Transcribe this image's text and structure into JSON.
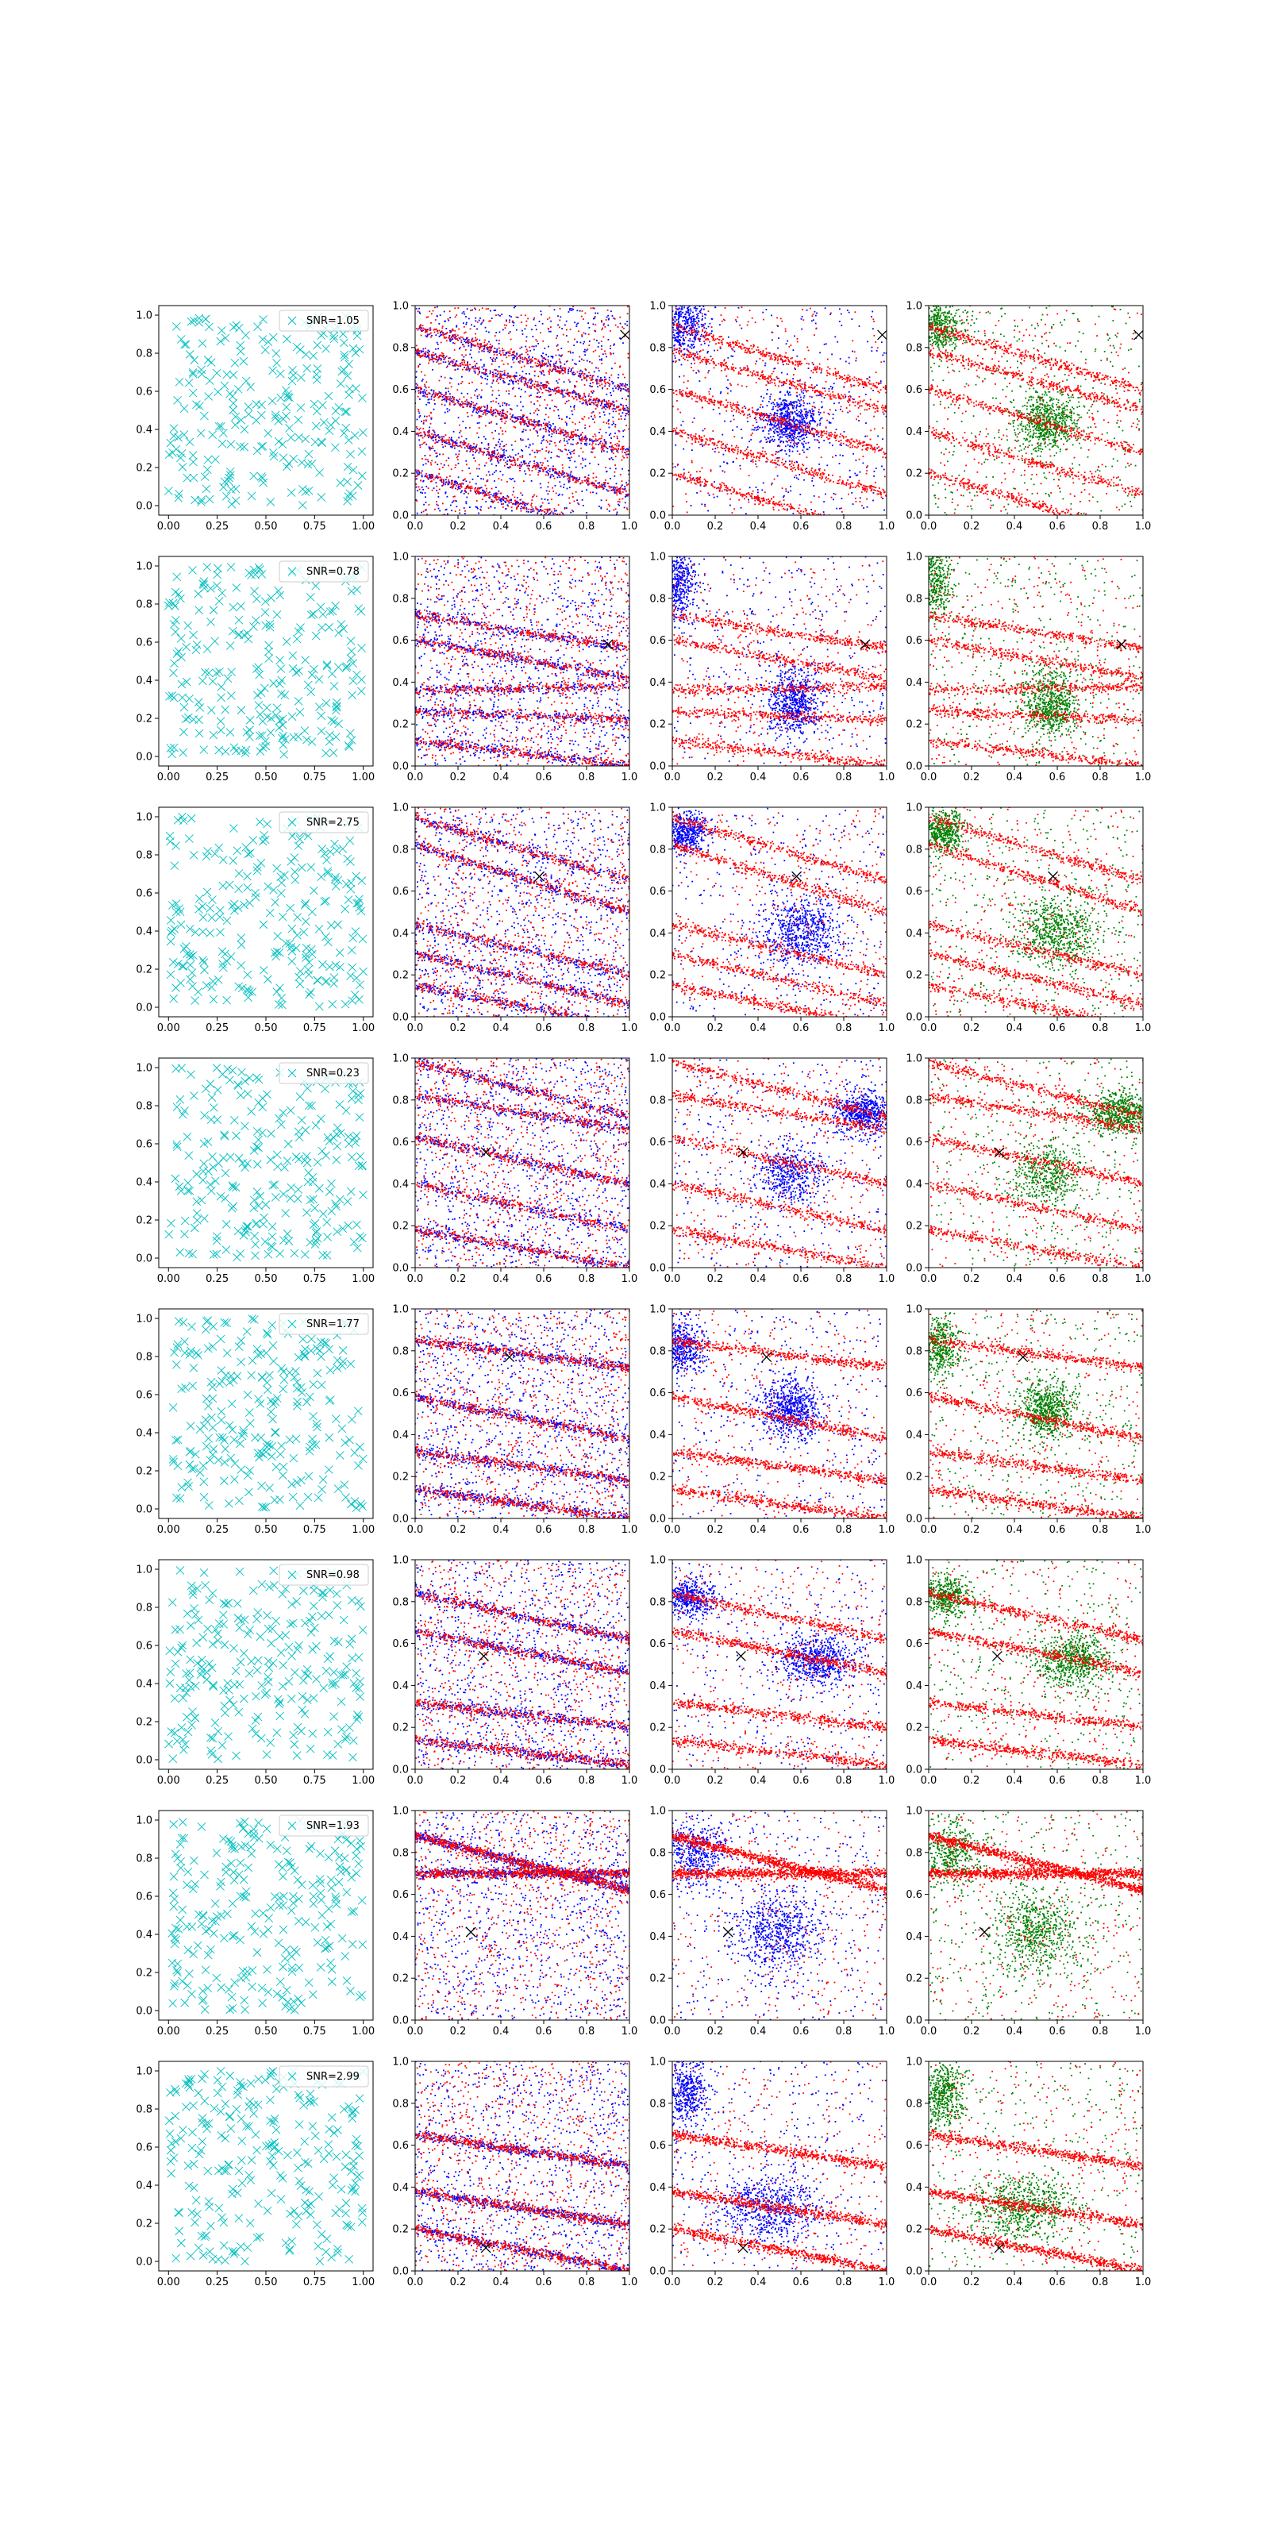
{
  "figure": {
    "rows": 8,
    "cols": 4,
    "colors": {
      "cyan": "#00bfbf",
      "red": "#ff0000",
      "blue": "#0000ff",
      "green": "#008000",
      "marker": "#000000"
    }
  },
  "chart_data": {
    "type": "scatter",
    "grid": false,
    "legend_placement": "upper right",
    "col0": {
      "xlim": [
        -0.05,
        1.05
      ],
      "ylim": [
        -0.05,
        1.05
      ],
      "xticks": [
        "0.00",
        "0.25",
        "0.50",
        "0.75",
        "1.00"
      ],
      "yticks": [
        "0.0",
        "0.2",
        "0.4",
        "0.6",
        "0.8",
        "1.0"
      ],
      "marker": "x",
      "marker_color": "cyan",
      "point_count_estimate": 250
    },
    "cols123": {
      "xlim": [
        0,
        1
      ],
      "ylim": [
        0,
        1
      ],
      "xticks": [
        "0.0",
        "0.2",
        "0.4",
        "0.6",
        "0.8",
        "1.0"
      ],
      "yticks": [
        "0.0",
        "0.2",
        "0.4",
        "0.6",
        "0.8",
        "1.0"
      ],
      "col1_series": [
        "blue",
        "red"
      ],
      "col2_series": [
        "blue",
        "red"
      ],
      "col3_series": [
        "green",
        "red"
      ]
    },
    "rows": [
      {
        "legend": "SNR=1.05",
        "marker": [
          0.98,
          0.86
        ],
        "stripes": [
          [
            0.9,
            0.6
          ],
          [
            0.78,
            0.5
          ],
          [
            0.6,
            0.3
          ],
          [
            0.4,
            0.1
          ],
          [
            0.2,
            -0.1
          ]
        ],
        "cluster": {
          "x": 0.55,
          "y": 0.45,
          "sx": 0.07,
          "sy": 0.07
        },
        "corner_cluster": {
          "x": 0.05,
          "y": 0.9,
          "sx": 0.06,
          "sy": 0.07
        }
      },
      {
        "legend": "SNR=0.78",
        "marker": [
          0.9,
          0.58
        ],
        "stripes": [
          [
            0.72,
            0.56
          ],
          [
            0.6,
            0.42
          ],
          [
            0.36,
            0.38
          ],
          [
            0.26,
            0.22
          ],
          [
            0.12,
            0.0
          ]
        ],
        "cluster": {
          "x": 0.57,
          "y": 0.3,
          "sx": 0.06,
          "sy": 0.08
        },
        "corner_cluster": {
          "x": 0.03,
          "y": 0.88,
          "sx": 0.04,
          "sy": 0.09
        }
      },
      {
        "legend": "SNR=2.75",
        "marker": [
          0.58,
          0.67
        ],
        "stripes": [
          [
            0.95,
            0.65
          ],
          [
            0.82,
            0.5
          ],
          [
            0.44,
            0.2
          ],
          [
            0.3,
            0.06
          ],
          [
            0.15,
            -0.05
          ]
        ],
        "cluster": {
          "x": 0.6,
          "y": 0.4,
          "sx": 0.1,
          "sy": 0.08
        },
        "corner_cluster": {
          "x": 0.07,
          "y": 0.88,
          "sx": 0.05,
          "sy": 0.05
        }
      },
      {
        "legend": "SNR=0.23",
        "marker": [
          0.33,
          0.55
        ],
        "stripes": [
          [
            0.98,
            0.72
          ],
          [
            0.82,
            0.66
          ],
          [
            0.62,
            0.4
          ],
          [
            0.4,
            0.18
          ],
          [
            0.18,
            0.0
          ]
        ],
        "cluster": {
          "x": 0.9,
          "y": 0.74,
          "sx": 0.08,
          "sy": 0.05
        },
        "corner_cluster": {
          "x": 0.55,
          "y": 0.45,
          "sx": 0.08,
          "sy": 0.07
        }
      },
      {
        "legend": "SNR=1.77",
        "marker": [
          0.44,
          0.77
        ],
        "stripes": [
          [
            0.85,
            0.72
          ],
          [
            0.58,
            0.38
          ],
          [
            0.32,
            0.18
          ],
          [
            0.14,
            0.0
          ]
        ],
        "cluster": {
          "x": 0.55,
          "y": 0.52,
          "sx": 0.07,
          "sy": 0.07
        },
        "corner_cluster": {
          "x": 0.05,
          "y": 0.82,
          "sx": 0.05,
          "sy": 0.07
        }
      },
      {
        "legend": "SNR=0.98",
        "marker": [
          0.32,
          0.54
        ],
        "stripes": [
          [
            0.84,
            0.62
          ],
          [
            0.66,
            0.46
          ],
          [
            0.32,
            0.2
          ],
          [
            0.14,
            0.02
          ]
        ],
        "cluster": {
          "x": 0.68,
          "y": 0.52,
          "sx": 0.09,
          "sy": 0.06
        },
        "corner_cluster": {
          "x": 0.08,
          "y": 0.82,
          "sx": 0.06,
          "sy": 0.05
        }
      },
      {
        "legend": "SNR=1.93",
        "marker": [
          0.26,
          0.42
        ],
        "stripes": [
          [
            0.7,
            0.7
          ],
          [
            0.88,
            0.62
          ]
        ],
        "cluster": {
          "x": 0.5,
          "y": 0.42,
          "sx": 0.1,
          "sy": 0.1
        },
        "corner_cluster": {
          "x": 0.1,
          "y": 0.8,
          "sx": 0.08,
          "sy": 0.08
        }
      },
      {
        "legend": "SNR=2.99",
        "marker": [
          0.33,
          0.11
        ],
        "stripes": [
          [
            0.2,
            0.0
          ],
          [
            0.38,
            0.22
          ],
          [
            0.65,
            0.5
          ]
        ],
        "cluster": {
          "x": 0.45,
          "y": 0.3,
          "sx": 0.12,
          "sy": 0.08
        },
        "corner_cluster": {
          "x": 0.07,
          "y": 0.85,
          "sx": 0.05,
          "sy": 0.08
        }
      }
    ]
  }
}
